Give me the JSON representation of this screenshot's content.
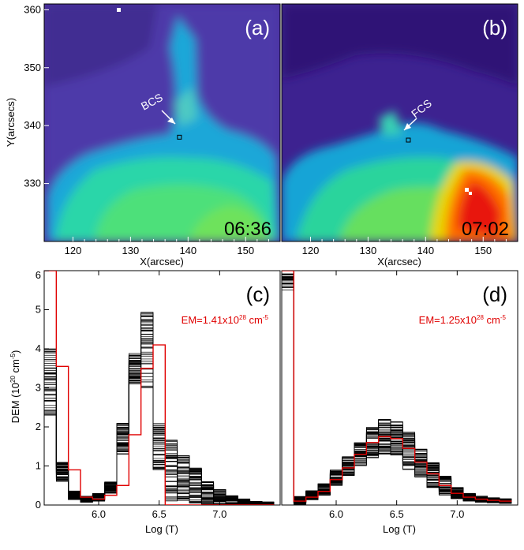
{
  "chart_data": [
    {
      "type": "heatmap",
      "panel": "(a)",
      "time": "06:36",
      "annotation": "BCS",
      "xlabel": "X(arcsec)",
      "ylabel": "Y(arcsecs)",
      "xlim": [
        115,
        156
      ],
      "ylim": [
        320,
        361
      ],
      "x_ticks": [
        "120",
        "130",
        "140",
        "150"
      ],
      "y_ticks": [
        "330",
        "340",
        "350",
        "360"
      ],
      "marker": {
        "x": 138.5,
        "y": 338
      }
    },
    {
      "type": "heatmap",
      "panel": "(b)",
      "time": "07:02",
      "annotation": "FCS",
      "xlabel": "X(arcsec)",
      "xlim": [
        115,
        156
      ],
      "ylim": [
        320,
        361
      ],
      "x_ticks": [
        "120",
        "130",
        "140",
        "150"
      ],
      "marker": {
        "x": 137,
        "y": 337.5
      }
    },
    {
      "type": "line",
      "panel": "(c)",
      "em_prefix": "EM=1.41x10",
      "em_exp": "28",
      "em_unit": " cm",
      "em_unit_exp": "-5",
      "xlabel": "Log (T)",
      "ylabel_main": "DEM (10",
      "ylabel_exp": "20",
      "ylabel_mid": " cm",
      "ylabel_exp2": "-5",
      "ylabel_end": ")",
      "xlim": [
        5.55,
        7.5
      ],
      "ylim": [
        0,
        6
      ],
      "x_ticks": [
        "6.0",
        "6.5",
        "7.0"
      ],
      "y_ticks": [
        "0",
        "1",
        "2",
        "3",
        "4",
        "5",
        "6"
      ],
      "bins": [
        5.55,
        5.65,
        5.75,
        5.85,
        5.95,
        6.05,
        6.15,
        6.25,
        6.35,
        6.45,
        6.55,
        6.65,
        6.75,
        6.85,
        6.95,
        7.05,
        7.15,
        7.25,
        7.35,
        7.45
      ],
      "best_fit": [
        6.0,
        3.55,
        0.9,
        0.2,
        0.15,
        0.25,
        0.5,
        1.8,
        3.5,
        4.1,
        0.0,
        0.0,
        0.0,
        0.0,
        0.0,
        0.0,
        0.0,
        0.0,
        0.0
      ],
      "mc_center": [
        3.2,
        0.85,
        0.25,
        0.15,
        0.2,
        0.45,
        1.7,
        3.5,
        4.0,
        1.5,
        0.9,
        0.7,
        0.5,
        0.3,
        0.2,
        0.12,
        0.08,
        0.05,
        0.04
      ],
      "mc_spread": [
        0.9,
        0.25,
        0.12,
        0.08,
        0.1,
        0.15,
        0.4,
        0.4,
        1.0,
        0.6,
        0.8,
        0.6,
        0.45,
        0.3,
        0.2,
        0.12,
        0.08,
        0.05,
        0.04
      ]
    },
    {
      "type": "line",
      "panel": "(d)",
      "em_prefix": "EM=1.25x10",
      "em_exp": "28",
      "em_unit": " cm",
      "em_unit_exp": "-5",
      "xlabel": "Log (T)",
      "xlim": [
        5.55,
        7.5
      ],
      "ylim": [
        0,
        6
      ],
      "x_ticks": [
        "6.0",
        "6.5",
        "7.0"
      ],
      "bins": [
        5.55,
        5.65,
        5.75,
        5.85,
        5.95,
        6.05,
        6.15,
        6.25,
        6.35,
        6.45,
        6.55,
        6.65,
        6.75,
        6.85,
        6.95,
        7.05,
        7.15,
        7.25,
        7.35,
        7.45
      ],
      "best_fit": [
        6.0,
        0.1,
        0.2,
        0.35,
        0.65,
        0.95,
        1.3,
        1.6,
        1.75,
        1.7,
        1.45,
        1.1,
        0.8,
        0.5,
        0.3,
        0.2,
        0.15,
        0.12,
        0.1
      ],
      "mc_center": [
        6.0,
        0.12,
        0.25,
        0.4,
        0.7,
        1.0,
        1.3,
        1.6,
        1.75,
        1.7,
        1.4,
        1.05,
        0.75,
        0.5,
        0.3,
        0.2,
        0.15,
        0.12,
        0.1
      ],
      "mc_spread": [
        0.5,
        0.1,
        0.12,
        0.15,
        0.2,
        0.25,
        0.3,
        0.4,
        0.45,
        0.45,
        0.5,
        0.4,
        0.35,
        0.25,
        0.15,
        0.1,
        0.08,
        0.07,
        0.06
      ]
    }
  ]
}
